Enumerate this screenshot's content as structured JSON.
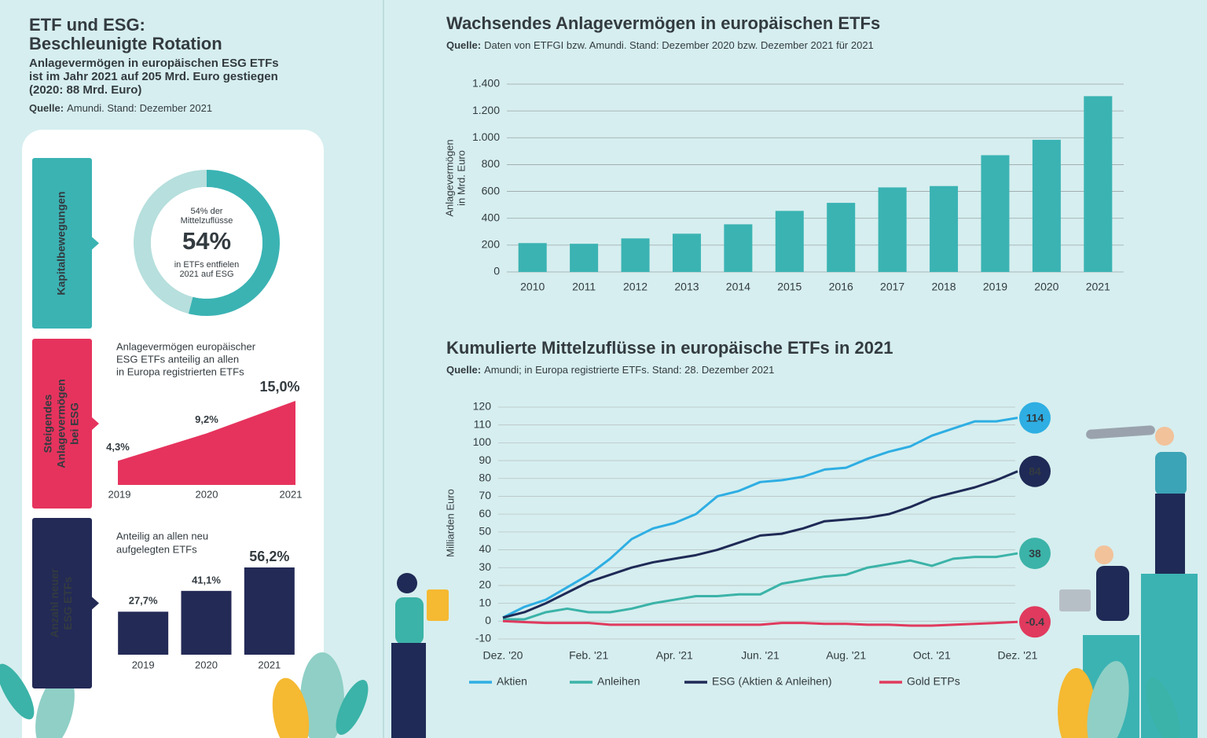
{
  "header": {
    "title": [
      "ETF und ESG:",
      "Beschleunigte Rotation"
    ],
    "subtitle": [
      "Anlagevermögen in europäischen ESG ETFs",
      "ist im Jahr 2021 auf 205 Mrd. Euro gestiegen",
      "(2020: 88 Mrd. Euro)"
    ],
    "source_label": "Quelle:",
    "source": "Amundi. Stand: Dezember 2021"
  },
  "chart_data": [
    {
      "type": "donut",
      "tab": [
        "Kapitalbewegungen"
      ],
      "annotations": [
        "54% der",
        "Mittelzuflüsse",
        "in ETFs entfielen",
        "2021 auf ESG"
      ],
      "values": [
        54,
        46
      ],
      "value_labels": [
        "54%",
        null
      ],
      "colors": [
        "#3bb3b3",
        "#b6dfdd"
      ]
    },
    {
      "type": "area",
      "tab": [
        "Steigendes",
        "Anlagevermögen",
        "bei ESG"
      ],
      "description": [
        "Anlagevermögen europäischer",
        "ESG ETFs anteilig an allen",
        "in Europa registrierten ETFs"
      ],
      "categories": [
        "2019",
        "2020",
        "2021"
      ],
      "values": [
        4.3,
        9.2,
        15.0
      ],
      "value_labels": [
        "4,3%",
        "9,2%",
        "15,0%"
      ],
      "color": "#e6335d"
    },
    {
      "type": "bar",
      "tab": [
        "Anzahl neuer",
        "ESG ETFs"
      ],
      "description": [
        "Anteilig an allen neu",
        "aufgelegten ETFs"
      ],
      "categories": [
        "2019",
        "2020",
        "2021"
      ],
      "values": [
        27.7,
        41.1,
        56.2
      ],
      "value_labels": [
        "27,7%",
        "41,1%",
        "56,2%"
      ],
      "color": "#232a56"
    },
    {
      "type": "bar",
      "title": "Wachsendes Anlagevermögen in europäischen ETFs",
      "source_label": "Quelle:",
      "source": "Daten von ETFGI bzw. Amundi. Stand: Dezember 2020 bzw. Dezember 2021 für 2021",
      "ylabel": [
        "Anlagevermögen",
        "in Mrd. Euro"
      ],
      "categories": [
        "2010",
        "2011",
        "2012",
        "2013",
        "2014",
        "2015",
        "2016",
        "2017",
        "2018",
        "2019",
        "2020",
        "2021"
      ],
      "values": [
        215,
        210,
        250,
        285,
        355,
        455,
        515,
        630,
        640,
        870,
        985,
        1310
      ],
      "color": "#3bb3b3",
      "ylim": [
        0,
        1400
      ],
      "yticks": [
        0,
        200,
        400,
        600,
        800,
        {
          "value": 1000,
          "label": "1.000"
        },
        {
          "value": 1200,
          "label": "1.200"
        },
        {
          "value": 1400,
          "label": "1.400"
        }
      ],
      "grid": true
    },
    {
      "type": "line",
      "title": "Kumulierte Mittelzuflüsse in europäische ETFs in 2021",
      "source_label": "Quelle:",
      "source": "Amundi; in Europa registrierte ETFs. Stand: 28. Dezember 2021",
      "ylabel": "Milliarden Euro",
      "x": [
        0,
        0.5,
        1,
        1.5,
        2,
        2.5,
        3,
        3.5,
        4,
        4.5,
        5,
        5.5,
        6,
        6.5,
        7,
        7.5,
        8,
        8.5,
        9,
        9.5,
        10,
        10.5,
        11,
        11.5,
        12
      ],
      "xlim": [
        0,
        12
      ],
      "xticks": [
        {
          "value": 0,
          "label": "Dez. '20"
        },
        {
          "value": 2,
          "label": "Feb. '21"
        },
        {
          "value": 4,
          "label": "Apr. '21"
        },
        {
          "value": 6,
          "label": "Jun. '21"
        },
        {
          "value": 8,
          "label": "Aug. '21"
        },
        {
          "value": 10,
          "label": "Oct. '21"
        },
        {
          "value": 12,
          "label": "Dez. '21"
        }
      ],
      "ylim": [
        -10,
        120
      ],
      "yticks": [
        -10,
        0,
        10,
        20,
        30,
        40,
        50,
        60,
        70,
        80,
        90,
        100,
        110,
        120
      ],
      "grid": true,
      "series": [
        {
          "name": "Aktien",
          "color": "#2eaee3",
          "values": [
            2,
            8,
            12,
            19,
            26,
            35,
            46,
            52,
            55,
            60,
            70,
            73,
            78,
            79,
            81,
            85,
            86,
            91,
            95,
            98,
            104,
            108,
            112,
            112,
            114
          ]
        },
        {
          "name": "Anleihen",
          "color": "#3bb3a8",
          "values": [
            1,
            1,
            5,
            7,
            5,
            5,
            7,
            10,
            12,
            14,
            14,
            15,
            15,
            21,
            23,
            25,
            26,
            30,
            32,
            34,
            31,
            35,
            36,
            36,
            38
          ]
        },
        {
          "name": "ESG (Aktien & Anleihen)",
          "color": "#1f2a56",
          "values": [
            2,
            5,
            10,
            16,
            22,
            26,
            30,
            33,
            35,
            37,
            40,
            44,
            48,
            49,
            52,
            56,
            57,
            58,
            60,
            64,
            69,
            72,
            75,
            79,
            84
          ]
        },
        {
          "name": "Gold ETPs",
          "color": "#e03a5e",
          "values": [
            0,
            -0.5,
            -1,
            -1,
            -1,
            -2,
            -2,
            -2,
            -2,
            -2,
            -2,
            -2,
            -2,
            -1,
            -1,
            -1.5,
            -1.5,
            -2,
            -2,
            -2.5,
            -2.5,
            -2,
            -1.5,
            -1,
            -0.4
          ]
        }
      ]
    }
  ]
}
